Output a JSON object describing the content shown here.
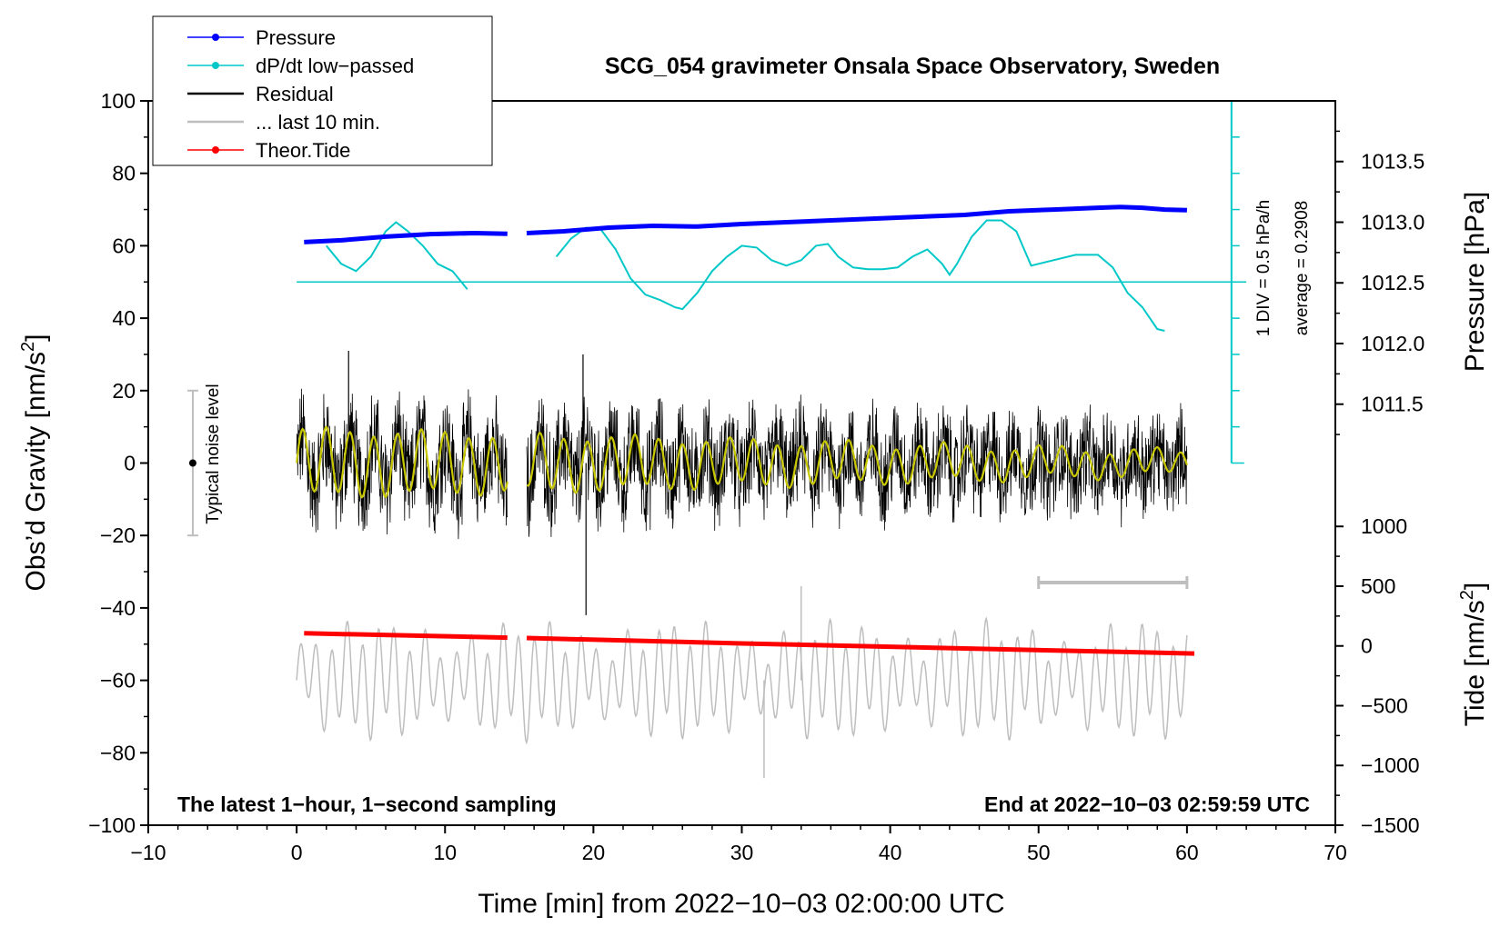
{
  "chart_data": {
    "type": "line",
    "title": "SCG_054 gravimeter Onsala Space Observatory, Sweden",
    "xlabel": "Time [min] from 2022−10−03 02:00:00 UTC",
    "ylabel_left_pre": "Obs’d Gravity [nm/s",
    "ylabel_left_sup": "2",
    "ylabel_left_post": "]",
    "ylabel_right_top": "Pressure [hPa]",
    "ylabel_right_bottom_pre": "Tide [nm/s",
    "ylabel_right_bottom_sup": "2",
    "ylabel_right_bottom_post": "]",
    "xlim": [
      -10,
      70
    ],
    "ylim_left": [
      -100,
      100
    ],
    "x_ticks": [
      -10,
      0,
      10,
      20,
      30,
      40,
      50,
      60,
      70
    ],
    "x_tick_labels": [
      "−10",
      "0",
      "10",
      "20",
      "30",
      "40",
      "50",
      "60",
      "70"
    ],
    "y_left_ticks": [
      -100,
      -80,
      -60,
      -40,
      -20,
      0,
      20,
      40,
      60,
      80,
      100
    ],
    "y_left_tick_labels": [
      "−100",
      "−80",
      "−60",
      "−40",
      "−20",
      "0",
      "20",
      "40",
      "60",
      "80",
      "100"
    ],
    "pressure_axis": {
      "ticks": [
        1011.5,
        1012.0,
        1012.5,
        1013.0,
        1013.5
      ],
      "tick_labels": [
        "1011.5",
        "1012.0",
        "1012.5",
        "1013.0",
        "1013.5"
      ],
      "ref_value": 1013.0,
      "ref_left_y": 66.5,
      "gravity_per_hpa": 33.5
    },
    "tide_axis": {
      "ticks": [
        -1500,
        -1000,
        -500,
        0,
        500,
        1000
      ],
      "tick_labels": [
        "−1500",
        "−1000",
        "−500",
        "0",
        "500",
        "1000"
      ],
      "ref_value": 0,
      "ref_left_y": -50.5,
      "gravity_per_unit": 0.033
    },
    "legend": {
      "position": "top-left",
      "entries": [
        {
          "label": "Pressure",
          "color": "#0000ff",
          "style": "line-dot"
        },
        {
          "label": "dP/dt low−passed",
          "color": "#00c8c8",
          "style": "line-dot"
        },
        {
          "label": "Residual",
          "color": "#000000",
          "style": "line"
        },
        {
          "label": "... last 10 min.",
          "color": "#bebebe",
          "style": "line"
        },
        {
          "label": "Theor.Tide",
          "color": "#ff0000",
          "style": "line-dot"
        }
      ]
    },
    "noise_bar": {
      "x": -7,
      "center": 0,
      "half_range": 20,
      "label": "Typical noise level"
    },
    "dpdt_scale": {
      "label1": "1 DIV = 0.5 hPa/h",
      "label2": "average = 0.2908",
      "x": 63,
      "y_bottom": 0,
      "y_top": 100,
      "baseline": 50,
      "div_ticks": 10
    },
    "last10_bracket": {
      "x_start": 50,
      "x_end": 60,
      "y": -33
    },
    "gap": [
      14.2,
      15.5
    ],
    "series": [
      {
        "name": "Pressure",
        "color": "#0000ff",
        "x": [
          0.5,
          3,
          6,
          9,
          12,
          14.2,
          15.5,
          18,
          21,
          24,
          27,
          30,
          33,
          36,
          39,
          42,
          45,
          48,
          51,
          54,
          55.5,
          57,
          58.5,
          60
        ],
        "y": [
          61,
          61.5,
          62.5,
          63.2,
          63.5,
          63.3,
          63.5,
          64,
          65,
          65.5,
          65.3,
          66,
          66.5,
          67,
          67.5,
          68,
          68.5,
          69.5,
          70,
          70.5,
          70.7,
          70.5,
          70,
          69.8
        ]
      },
      {
        "name": "dP/dt low−passed",
        "color": "#00c8c8",
        "x": [
          2,
          3,
          4,
          5,
          6,
          6.7,
          7.5,
          8.5,
          9.5,
          10.5,
          11.5,
          null,
          17.5,
          18.5,
          19.5,
          20.5,
          21.5,
          22.5,
          23.5,
          24.5,
          25.5,
          26,
          27,
          28,
          29,
          30,
          31,
          32,
          33,
          34,
          35,
          35.8,
          36.5,
          37.5,
          38.5,
          39.5,
          40.5,
          41.5,
          42.5,
          43.5,
          44,
          44.5,
          45.5,
          46.5,
          47.5,
          48.5,
          49.5,
          51,
          52.5,
          54,
          55,
          56,
          57,
          58,
          58.5
        ],
        "y": [
          60,
          55,
          53,
          57,
          64,
          66.5,
          64,
          60,
          55,
          53,
          48,
          null,
          57,
          62,
          65,
          64.5,
          59,
          51,
          46.5,
          45,
          43,
          42.5,
          47,
          53,
          57,
          60,
          59.5,
          56,
          54.5,
          56,
          60,
          60.5,
          57,
          54,
          53.5,
          53.5,
          54,
          57,
          59,
          55,
          52,
          55,
          62.5,
          67,
          67,
          64,
          54.5,
          56,
          57.5,
          57.5,
          54,
          47,
          43,
          37,
          36.5
        ]
      },
      {
        "name": "Residual",
        "color": "#000000",
        "x_range": [
          0,
          60
        ],
        "gaps": [
          [
            14.2,
            15.5
          ]
        ],
        "amplitude_envelope_min": [
          -20,
          20
        ],
        "notable_extremes": [
          {
            "x": 19.5,
            "y": -42
          },
          {
            "x": 19.3,
            "y": 30
          },
          {
            "x": 3.5,
            "y": 31
          }
        ]
      },
      {
        "name": "Residual smoothed",
        "color": "#c8c800",
        "x_range": [
          0,
          60
        ],
        "period_min": 1.6,
        "amplitude_start": 9,
        "amplitude_end": 3
      },
      {
        "name": "... last 10 min.",
        "color": "#bebebe",
        "x_range": [
          0,
          60
        ],
        "center": -60,
        "amplitude_approx": 12,
        "notable_extremes": [
          {
            "x": 34,
            "y": -34
          },
          {
            "x": 31.5,
            "y": -87
          }
        ]
      },
      {
        "name": "Theor.Tide",
        "color": "#ff0000",
        "x": [
          0.5,
          14.2,
          15.5,
          30,
          45,
          60.5
        ],
        "y": [
          -47,
          -48.2,
          -48.3,
          -49.8,
          -51.2,
          -52.6
        ]
      }
    ],
    "annotations": {
      "bottom_left": "The latest 1−hour, 1−second sampling",
      "bottom_right": "End at 2022−10−03 02:59:59 UTC"
    }
  }
}
